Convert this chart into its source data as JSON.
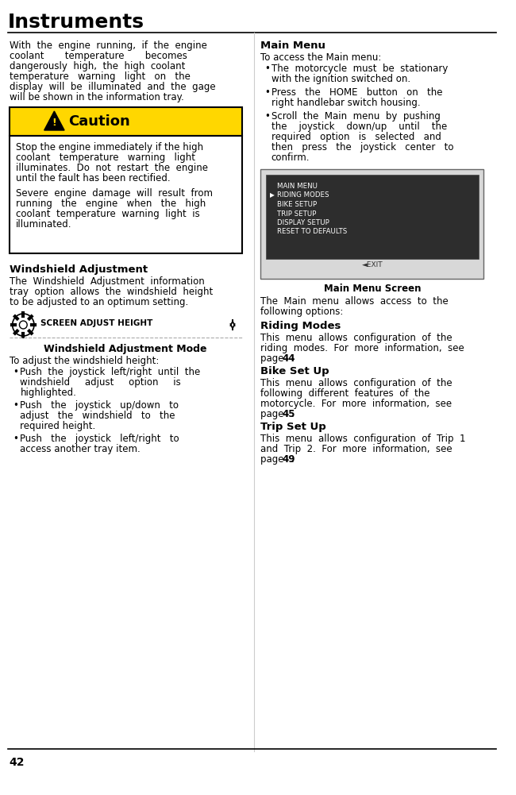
{
  "title": "Instruments",
  "page_number": "42",
  "bg_color": "#ffffff",
  "text_color": "#000000",
  "caution_bg": "#FFD700",
  "caution_border": "#000000",
  "screen_bg": "#2d2d2d",
  "screen_text": "#ffffff",
  "left_body1": [
    "With  the  engine  running,  if  the  engine",
    "coolant       temperature       becomes",
    "dangerously  high,  the  high  coolant",
    "temperature   warning   light   on   the",
    "display  will  be  illuminated  and  the  gage",
    "will be shown in the information tray."
  ],
  "caution_body1": [
    "Stop the engine immediately if the high",
    "coolant   temperature   warning   light",
    "illuminates.  Do  not  restart  the  engine",
    "until the fault has been rectified."
  ],
  "caution_body2": [
    "Severe  engine  damage  will  result  from",
    "running   the   engine   when   the   high",
    "coolant  temperature  warning  light  is",
    "illuminated."
  ],
  "ws_body": [
    "The  Windshield  Adjustment  information",
    "tray  option  allows  the  windshield  height",
    "to be adjusted to an optimum setting."
  ],
  "screen_label": "SCREEN ADJUST HEIGHT",
  "ws_mode_heading": "Windshield Adjustment Mode",
  "ws_intro": "To adjust the windshield height:",
  "bullets_left": [
    [
      "Push  the  joystick  left/right  until  the",
      "windshield     adjust     option     is",
      "highlighted."
    ],
    [
      "Push   the   joystick   up/down   to",
      "adjust   the   windshield   to   the",
      "required height."
    ],
    [
      "Push   the   joystick   left/right   to",
      "access another tray item."
    ]
  ],
  "main_menu_heading": "Main Menu",
  "main_menu_intro": "To access the Main menu:",
  "bullets_right": [
    [
      "The  motorcycle  must  be  stationary",
      "with the ignition switched on."
    ],
    [
      "Press   the   HOME   button   on   the",
      "right handlebar switch housing."
    ],
    [
      "Scroll  the  Main  menu  by  pushing",
      "the    joystick    down/up    until    the",
      "required   option   is   selected   and",
      "then   press   the   joystick   center   to",
      "confirm."
    ]
  ],
  "menu_items": [
    "MAIN MENU",
    "RIDING MODES",
    "BIKE SETUP",
    "TRIP SETUP",
    "DISPLAY SETUP",
    "RESET TO DEFAULTS"
  ],
  "menu_selected": 1,
  "screen_caption": "Main Menu Screen",
  "right_body2": [
    "The  Main  menu  allows  access  to  the",
    "following options:"
  ],
  "riding_modes_heading": "Riding Modes",
  "riding_body": [
    "This  menu  allows  configuration  of  the",
    "riding  modes.  For  more  information,  see"
  ],
  "riding_page": "44",
  "bike_heading": "Bike Set Up",
  "bike_body": [
    "This  menu  allows  configuration  of  the",
    "following  different  features  of  the",
    "motorcycle.  For  more  information,  see"
  ],
  "bike_page": "45",
  "trip_heading": "Trip Set Up",
  "trip_body": [
    "This  menu  allows  configuration  of  Trip  1",
    "and  Trip  2.  For  more  information,  see"
  ],
  "trip_page": "49",
  "windshield_heading": "Windshield Adjustment"
}
